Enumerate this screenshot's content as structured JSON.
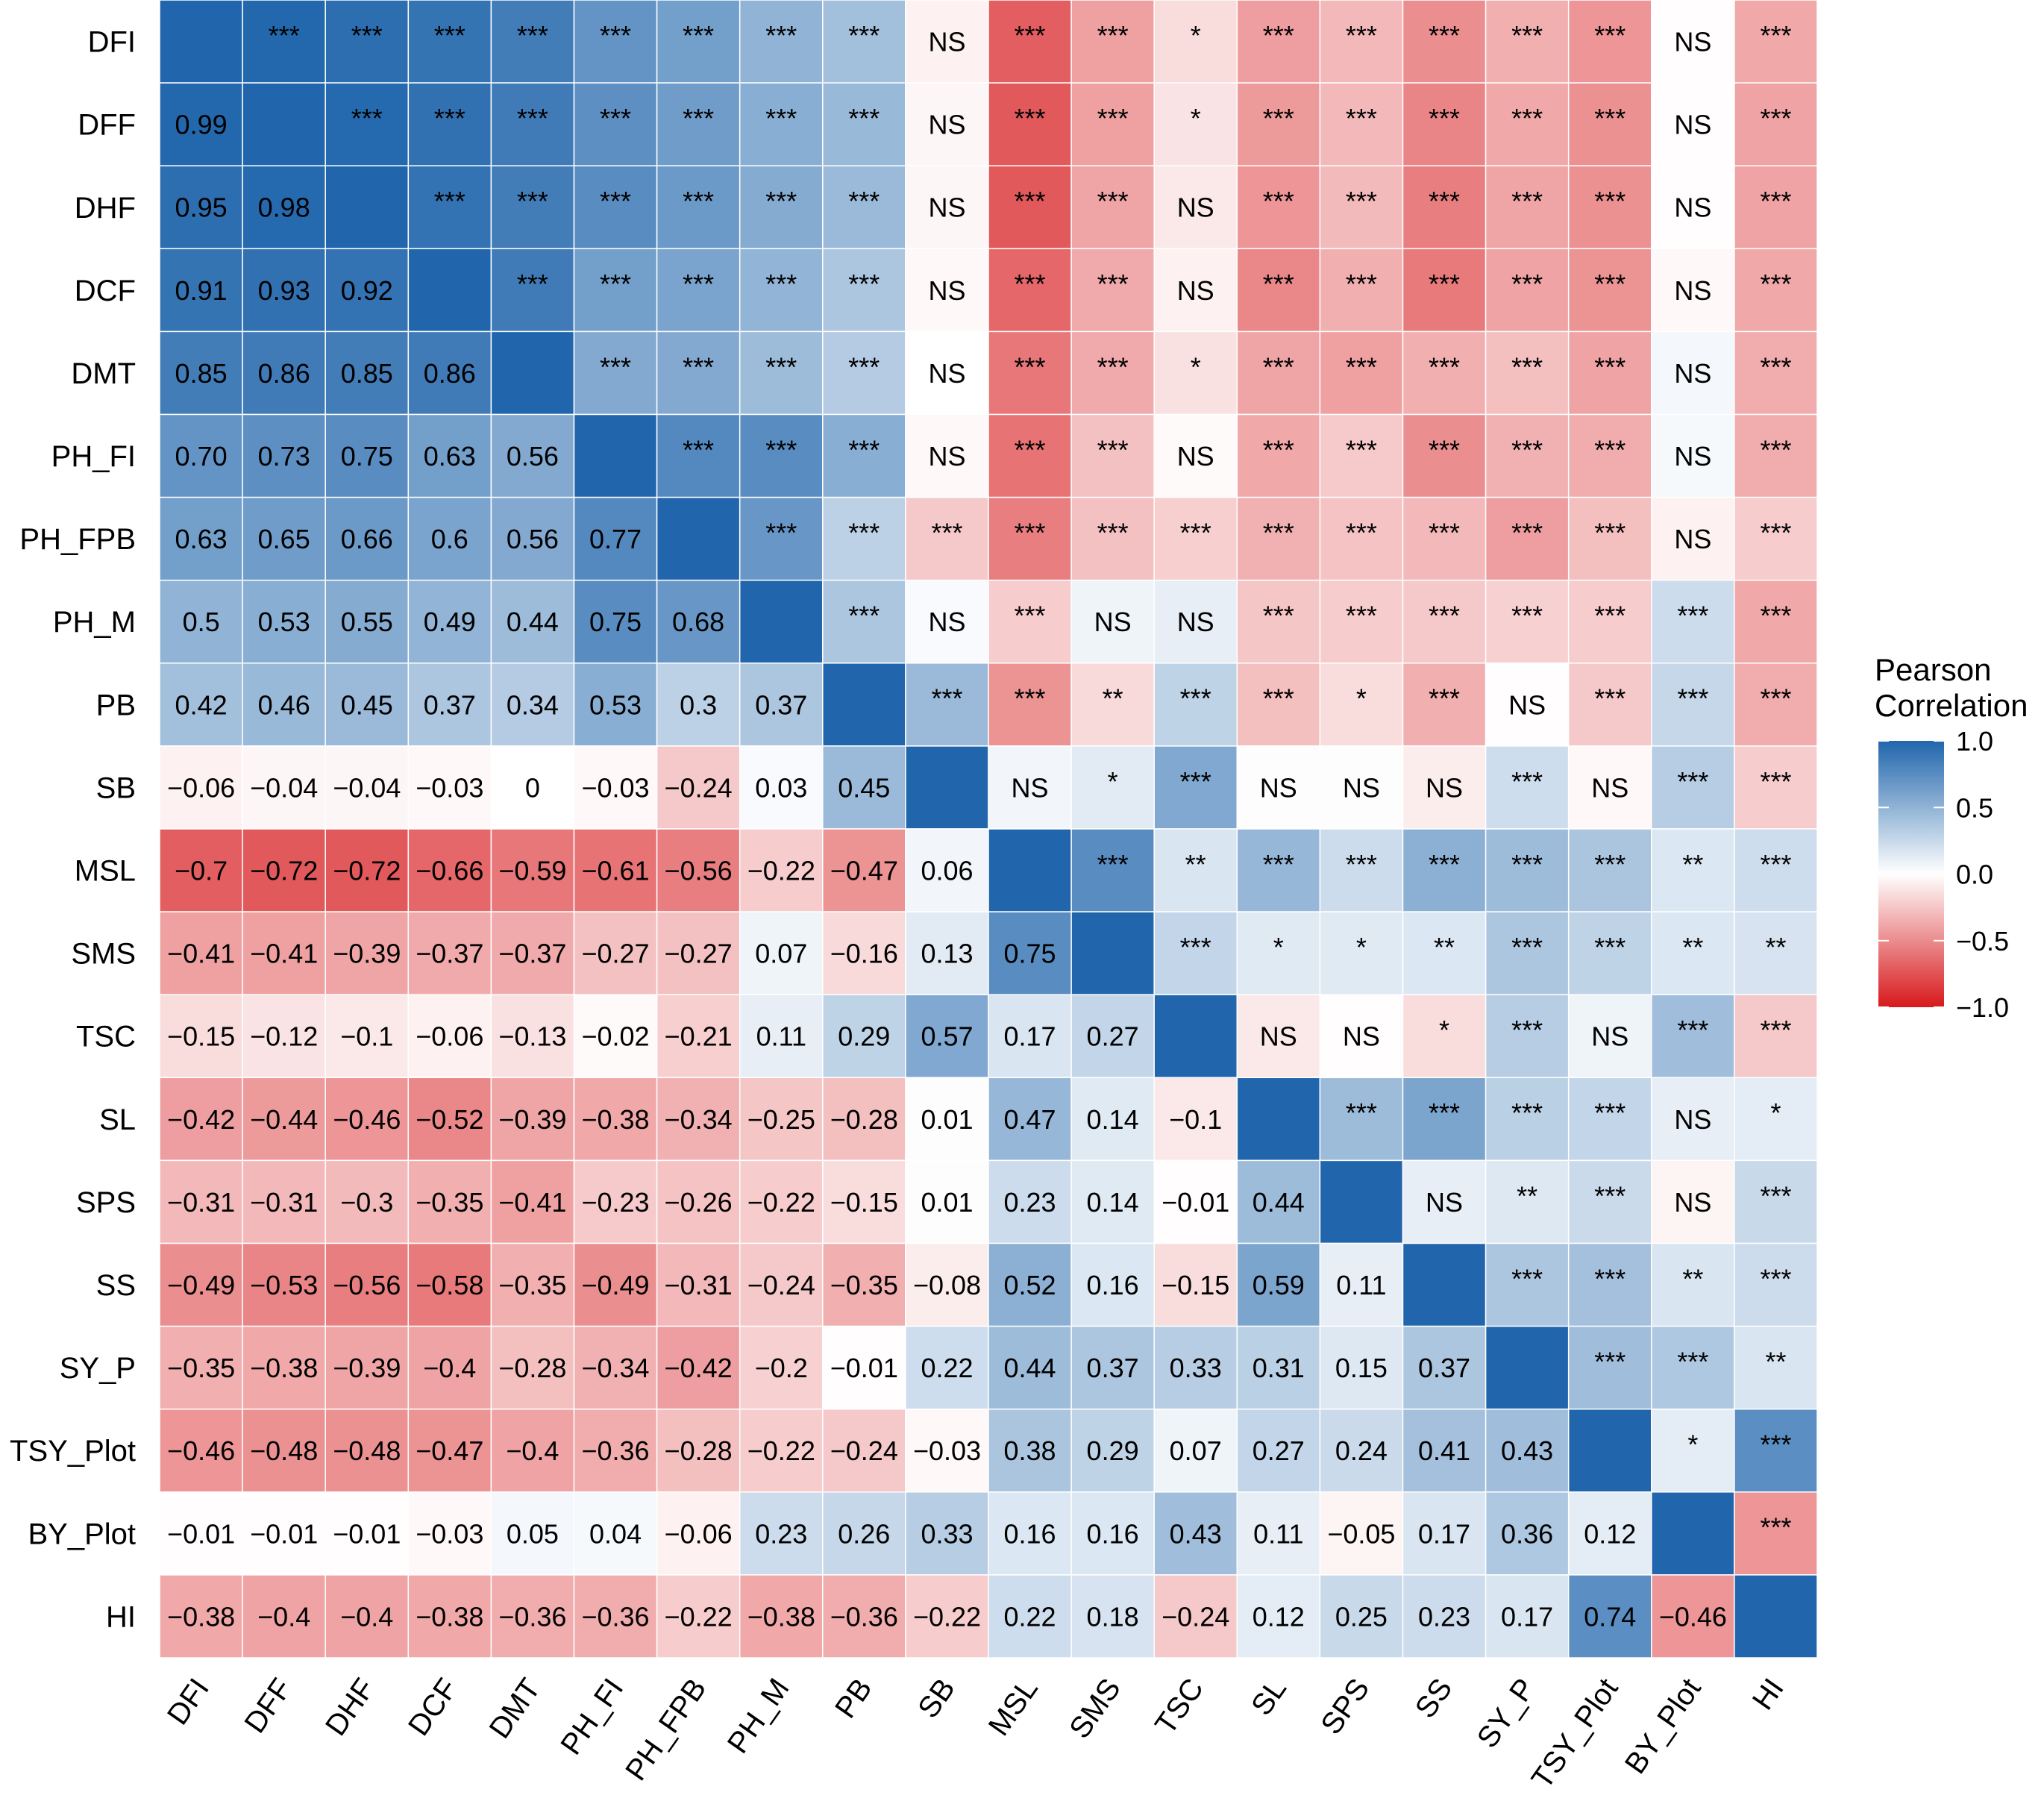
{
  "chart_data": {
    "type": "heatmap",
    "variables": [
      "DFI",
      "DFF",
      "DHF",
      "DCF",
      "DMT",
      "PH_FI",
      "PH_FPB",
      "PH_M",
      "PB",
      "SB",
      "MSL",
      "SMS",
      "TSC",
      "SL",
      "SPS",
      "SS",
      "SY_P",
      "TSY_Plot",
      "BY_Plot",
      "HI"
    ],
    "lower_triangle_label": "Pearson correlation coefficient (printed below diagonal)",
    "upper_triangle_label": "Significance level (printed above diagonal)",
    "correlations": [
      [
        1,
        0.99,
        0.95,
        0.91,
        0.85,
        0.7,
        0.63,
        0.5,
        0.42,
        -0.06,
        -0.7,
        -0.41,
        -0.15,
        -0.42,
        -0.31,
        -0.49,
        -0.35,
        -0.46,
        -0.01,
        -0.38
      ],
      [
        0.99,
        1,
        0.98,
        0.93,
        0.86,
        0.73,
        0.65,
        0.53,
        0.46,
        -0.04,
        -0.72,
        -0.41,
        -0.12,
        -0.44,
        -0.31,
        -0.53,
        -0.38,
        -0.48,
        -0.01,
        -0.4
      ],
      [
        0.95,
        0.98,
        1,
        0.92,
        0.85,
        0.75,
        0.66,
        0.55,
        0.45,
        -0.04,
        -0.72,
        -0.39,
        -0.1,
        -0.46,
        -0.3,
        -0.56,
        -0.39,
        -0.48,
        -0.01,
        -0.4
      ],
      [
        0.91,
        0.93,
        0.92,
        1,
        0.86,
        0.63,
        0.6,
        0.49,
        0.37,
        -0.03,
        -0.66,
        -0.37,
        -0.06,
        -0.52,
        -0.35,
        -0.58,
        -0.4,
        -0.47,
        -0.03,
        -0.38
      ],
      [
        0.85,
        0.86,
        0.85,
        0.86,
        1,
        0.56,
        0.56,
        0.44,
        0.34,
        0,
        -0.59,
        -0.37,
        -0.13,
        -0.39,
        -0.41,
        -0.35,
        -0.28,
        -0.4,
        0.05,
        -0.36
      ],
      [
        0.7,
        0.73,
        0.75,
        0.63,
        0.56,
        1,
        0.77,
        0.75,
        0.53,
        -0.03,
        -0.61,
        -0.27,
        -0.02,
        -0.38,
        -0.23,
        -0.49,
        -0.34,
        -0.36,
        0.04,
        -0.36
      ],
      [
        0.63,
        0.65,
        0.66,
        0.6,
        0.56,
        0.77,
        1,
        0.68,
        0.3,
        -0.24,
        -0.56,
        -0.27,
        -0.21,
        -0.34,
        -0.26,
        -0.31,
        -0.42,
        -0.28,
        -0.06,
        -0.22
      ],
      [
        0.5,
        0.53,
        0.55,
        0.49,
        0.44,
        0.75,
        0.68,
        1,
        0.37,
        0.03,
        -0.22,
        0.07,
        0.11,
        -0.25,
        -0.22,
        -0.24,
        -0.2,
        -0.22,
        0.23,
        -0.38
      ],
      [
        0.42,
        0.46,
        0.45,
        0.37,
        0.34,
        0.53,
        0.3,
        0.37,
        1,
        0.45,
        -0.47,
        -0.16,
        0.29,
        -0.28,
        -0.15,
        -0.35,
        -0.01,
        -0.24,
        0.26,
        -0.36
      ],
      [
        -0.06,
        -0.04,
        -0.04,
        -0.03,
        0,
        -0.03,
        -0.24,
        0.03,
        0.45,
        1,
        0.06,
        0.13,
        0.57,
        0.01,
        0.01,
        -0.08,
        0.22,
        -0.03,
        0.33,
        -0.22
      ],
      [
        -0.7,
        -0.72,
        -0.72,
        -0.66,
        -0.59,
        -0.61,
        -0.56,
        -0.22,
        -0.47,
        0.06,
        1,
        0.75,
        0.17,
        0.47,
        0.23,
        0.52,
        0.44,
        0.38,
        0.16,
        0.22
      ],
      [
        -0.41,
        -0.41,
        -0.39,
        -0.37,
        -0.37,
        -0.27,
        -0.27,
        0.07,
        -0.16,
        0.13,
        0.75,
        1,
        0.27,
        0.14,
        0.14,
        0.16,
        0.37,
        0.29,
        0.16,
        0.18
      ],
      [
        -0.15,
        -0.12,
        -0.1,
        -0.06,
        -0.13,
        -0.02,
        -0.21,
        0.11,
        0.29,
        0.57,
        0.17,
        0.27,
        1,
        -0.1,
        -0.01,
        -0.15,
        0.33,
        0.07,
        0.43,
        -0.24
      ],
      [
        -0.42,
        -0.44,
        -0.46,
        -0.52,
        -0.39,
        -0.38,
        -0.34,
        -0.25,
        -0.28,
        0.01,
        0.47,
        0.14,
        -0.1,
        1,
        0.44,
        0.59,
        0.31,
        0.27,
        0.11,
        0.12
      ],
      [
        -0.31,
        -0.31,
        -0.3,
        -0.35,
        -0.41,
        -0.23,
        -0.26,
        -0.22,
        -0.15,
        0.01,
        0.23,
        0.14,
        -0.01,
        0.44,
        1,
        0.11,
        0.15,
        0.24,
        -0.05,
        0.25
      ],
      [
        -0.49,
        -0.53,
        -0.56,
        -0.58,
        -0.35,
        -0.49,
        -0.31,
        -0.24,
        -0.35,
        -0.08,
        0.52,
        0.16,
        -0.15,
        0.59,
        0.11,
        1,
        0.37,
        0.41,
        0.17,
        0.23
      ],
      [
        -0.35,
        -0.38,
        -0.39,
        -0.4,
        -0.28,
        -0.34,
        -0.42,
        -0.2,
        -0.01,
        0.22,
        0.44,
        0.37,
        0.33,
        0.31,
        0.15,
        0.37,
        1,
        0.43,
        0.36,
        0.17
      ],
      [
        -0.46,
        -0.48,
        -0.48,
        -0.47,
        -0.4,
        -0.36,
        -0.28,
        -0.22,
        -0.24,
        -0.03,
        0.38,
        0.29,
        0.07,
        0.27,
        0.24,
        0.41,
        0.43,
        1,
        0.12,
        0.74
      ],
      [
        -0.01,
        -0.01,
        -0.01,
        -0.03,
        0.05,
        0.04,
        -0.06,
        0.23,
        0.26,
        0.33,
        0.16,
        0.16,
        0.43,
        0.11,
        -0.05,
        0.17,
        0.36,
        0.12,
        1,
        -0.46
      ],
      [
        -0.38,
        -0.4,
        -0.4,
        -0.38,
        -0.36,
        -0.36,
        -0.22,
        -0.38,
        -0.36,
        -0.22,
        0.22,
        0.18,
        -0.24,
        0.12,
        0.25,
        0.23,
        0.17,
        0.74,
        -0.46,
        1
      ]
    ],
    "value_labels": [
      [
        "",
        "",
        "",
        "",
        "",
        "",
        "",
        "",
        "",
        "",
        "",
        "",
        "",
        "",
        "",
        "",
        "",
        "",
        "",
        ""
      ],
      [
        "0.99",
        "",
        "",
        "",
        "",
        "",
        "",
        "",
        "",
        "",
        "",
        "",
        "",
        "",
        "",
        "",
        "",
        "",
        "",
        ""
      ],
      [
        "0.95",
        "0.98",
        "",
        "",
        "",
        "",
        "",
        "",
        "",
        "",
        "",
        "",
        "",
        "",
        "",
        "",
        "",
        "",
        "",
        ""
      ],
      [
        "0.91",
        "0.93",
        "0.92",
        "",
        "",
        "",
        "",
        "",
        "",
        "",
        "",
        "",
        "",
        "",
        "",
        "",
        "",
        "",
        "",
        ""
      ],
      [
        "0.85",
        "0.86",
        "0.85",
        "0.86",
        "",
        "",
        "",
        "",
        "",
        "",
        "",
        "",
        "",
        "",
        "",
        "",
        "",
        "",
        "",
        ""
      ],
      [
        "0.70",
        "0.73",
        "0.75",
        "0.63",
        "0.56",
        "",
        "",
        "",
        "",
        "",
        "",
        "",
        "",
        "",
        "",
        "",
        "",
        "",
        "",
        ""
      ],
      [
        "0.63",
        "0.65",
        "0.66",
        "0.6",
        "0.56",
        "0.77",
        "",
        "",
        "",
        "",
        "",
        "",
        "",
        "",
        "",
        "",
        "",
        "",
        "",
        ""
      ],
      [
        "0.5",
        "0.53",
        "0.55",
        "0.49",
        "0.44",
        "0.75",
        "0.68",
        "",
        "",
        "",
        "",
        "",
        "",
        "",
        "",
        "",
        "",
        "",
        "",
        ""
      ],
      [
        "0.42",
        "0.46",
        "0.45",
        "0.37",
        "0.34",
        "0.53",
        "0.3",
        "0.37",
        "",
        "",
        "",
        "",
        "",
        "",
        "",
        "",
        "",
        "",
        "",
        ""
      ],
      [
        "−0.06",
        "−0.04",
        "−0.04",
        "−0.03",
        "0",
        "−0.03",
        "−0.24",
        "0.03",
        "0.45",
        "",
        "",
        "",
        "",
        "",
        "",
        "",
        "",
        "",
        "",
        ""
      ],
      [
        "−0.7",
        "−0.72",
        "−0.72",
        "−0.66",
        "−0.59",
        "−0.61",
        "−0.56",
        "−0.22",
        "−0.47",
        "0.06",
        "",
        "",
        "",
        "",
        "",
        "",
        "",
        "",
        "",
        ""
      ],
      [
        "−0.41",
        "−0.41",
        "−0.39",
        "−0.37",
        "−0.37",
        "−0.27",
        "−0.27",
        "0.07",
        "−0.16",
        "0.13",
        "0.75",
        "",
        "",
        "",
        "",
        "",
        "",
        "",
        "",
        ""
      ],
      [
        "−0.15",
        "−0.12",
        "−0.1",
        "−0.06",
        "−0.13",
        "−0.02",
        "−0.21",
        "0.11",
        "0.29",
        "0.57",
        "0.17",
        "0.27",
        "",
        "",
        "",
        "",
        "",
        "",
        "",
        ""
      ],
      [
        "−0.42",
        "−0.44",
        "−0.46",
        "−0.52",
        "−0.39",
        "−0.38",
        "−0.34",
        "−0.25",
        "−0.28",
        "0.01",
        "0.47",
        "0.14",
        "−0.1",
        "",
        "",
        "",
        "",
        "",
        "",
        ""
      ],
      [
        "−0.31",
        "−0.31",
        "−0.3",
        "−0.35",
        "−0.41",
        "−0.23",
        "−0.26",
        "−0.22",
        "−0.15",
        "0.01",
        "0.23",
        "0.14",
        "−0.01",
        "0.44",
        "",
        "",
        "",
        "",
        "",
        ""
      ],
      [
        "−0.49",
        "−0.53",
        "−0.56",
        "−0.58",
        "−0.35",
        "−0.49",
        "−0.31",
        "−0.24",
        "−0.35",
        "−0.08",
        "0.52",
        "0.16",
        "−0.15",
        "0.59",
        "0.11",
        "",
        "",
        "",
        "",
        ""
      ],
      [
        "−0.35",
        "−0.38",
        "−0.39",
        "−0.4",
        "−0.28",
        "−0.34",
        "−0.42",
        "−0.2",
        "−0.01",
        "0.22",
        "0.44",
        "0.37",
        "0.33",
        "0.31",
        "0.15",
        "0.37",
        "",
        "",
        "",
        ""
      ],
      [
        "−0.46",
        "−0.48",
        "−0.48",
        "−0.47",
        "−0.4",
        "−0.36",
        "−0.28",
        "−0.22",
        "−0.24",
        "−0.03",
        "0.38",
        "0.29",
        "0.07",
        "0.27",
        "0.24",
        "0.41",
        "0.43",
        "",
        "",
        ""
      ],
      [
        "−0.01",
        "−0.01",
        "−0.01",
        "−0.03",
        "0.05",
        "0.04",
        "−0.06",
        "0.23",
        "0.26",
        "0.33",
        "0.16",
        "0.16",
        "0.43",
        "0.11",
        "−0.05",
        "0.17",
        "0.36",
        "0.12",
        "",
        ""
      ],
      [
        "−0.38",
        "−0.4",
        "−0.4",
        "−0.38",
        "−0.36",
        "−0.36",
        "−0.22",
        "−0.38",
        "−0.36",
        "−0.22",
        "0.22",
        "0.18",
        "−0.24",
        "0.12",
        "0.25",
        "0.23",
        "0.17",
        "0.74",
        "−0.46",
        ""
      ]
    ],
    "significance": [
      [
        "",
        "***",
        "***",
        "***",
        "***",
        "***",
        "***",
        "***",
        "***",
        "NS",
        "***",
        "***",
        "*",
        "***",
        "***",
        "***",
        "***",
        "***",
        "NS",
        "***"
      ],
      [
        "",
        "",
        "***",
        "***",
        "***",
        "***",
        "***",
        "***",
        "***",
        "NS",
        "***",
        "***",
        "*",
        "***",
        "***",
        "***",
        "***",
        "***",
        "NS",
        "***"
      ],
      [
        "",
        "",
        "",
        "***",
        "***",
        "***",
        "***",
        "***",
        "***",
        "NS",
        "***",
        "***",
        "NS",
        "***",
        "***",
        "***",
        "***",
        "***",
        "NS",
        "***"
      ],
      [
        "",
        "",
        "",
        "",
        "***",
        "***",
        "***",
        "***",
        "***",
        "NS",
        "***",
        "***",
        "NS",
        "***",
        "***",
        "***",
        "***",
        "***",
        "NS",
        "***"
      ],
      [
        "",
        "",
        "",
        "",
        "",
        "***",
        "***",
        "***",
        "***",
        "NS",
        "***",
        "***",
        "*",
        "***",
        "***",
        "***",
        "***",
        "***",
        "NS",
        "***"
      ],
      [
        "",
        "",
        "",
        "",
        "",
        "",
        "***",
        "***",
        "***",
        "NS",
        "***",
        "***",
        "NS",
        "***",
        "***",
        "***",
        "***",
        "***",
        "NS",
        "***"
      ],
      [
        "",
        "",
        "",
        "",
        "",
        "",
        "",
        "***",
        "***",
        "***",
        "***",
        "***",
        "***",
        "***",
        "***",
        "***",
        "***",
        "***",
        "NS",
        "***"
      ],
      [
        "",
        "",
        "",
        "",
        "",
        "",
        "",
        "",
        "***",
        "NS",
        "***",
        "NS",
        "NS",
        "***",
        "***",
        "***",
        "***",
        "***",
        "***",
        "***"
      ],
      [
        "",
        "",
        "",
        "",
        "",
        "",
        "",
        "",
        "",
        "***",
        "***",
        "**",
        "***",
        "***",
        "*",
        "***",
        "NS",
        "***",
        "***",
        "***"
      ],
      [
        "",
        "",
        "",
        "",
        "",
        "",
        "",
        "",
        "",
        "",
        "NS",
        "*",
        "***",
        "NS",
        "NS",
        "NS",
        "***",
        "NS",
        "***",
        "***"
      ],
      [
        "",
        "",
        "",
        "",
        "",
        "",
        "",
        "",
        "",
        "",
        "",
        "***",
        "**",
        "***",
        "***",
        "***",
        "***",
        "***",
        "**",
        "***"
      ],
      [
        "",
        "",
        "",
        "",
        "",
        "",
        "",
        "",
        "",
        "",
        "",
        "",
        "***",
        "*",
        "*",
        "**",
        "***",
        "***",
        "**",
        "**"
      ],
      [
        "",
        "",
        "",
        "",
        "",
        "",
        "",
        "",
        "",
        "",
        "",
        "",
        "",
        "NS",
        "NS",
        "*",
        "***",
        "NS",
        "***",
        "***"
      ],
      [
        "",
        "",
        "",
        "",
        "",
        "",
        "",
        "",
        "",
        "",
        "",
        "",
        "",
        "",
        "***",
        "***",
        "***",
        "***",
        "NS",
        "*"
      ],
      [
        "",
        "",
        "",
        "",
        "",
        "",
        "",
        "",
        "",
        "",
        "",
        "",
        "",
        "",
        "",
        "NS",
        "**",
        "***",
        "NS",
        "***"
      ],
      [
        "",
        "",
        "",
        "",
        "",
        "",
        "",
        "",
        "",
        "",
        "",
        "",
        "",
        "",
        "",
        "",
        "***",
        "***",
        "**",
        "***"
      ],
      [
        "",
        "",
        "",
        "",
        "",
        "",
        "",
        "",
        "",
        "",
        "",
        "",
        "",
        "",
        "",
        "",
        "",
        "***",
        "***",
        "**"
      ],
      [
        "",
        "",
        "",
        "",
        "",
        "",
        "",
        "",
        "",
        "",
        "",
        "",
        "",
        "",
        "",
        "",
        "",
        "",
        "*",
        "***"
      ],
      [
        "",
        "",
        "",
        "",
        "",
        "",
        "",
        "",
        "",
        "",
        "",
        "",
        "",
        "",
        "",
        "",
        "",
        "",
        "",
        "***"
      ],
      [
        "",
        "",
        "",
        "",
        "",
        "",
        "",
        "",
        "",
        "",
        "",
        "",
        "",
        "",
        "",
        "",
        "",
        "",
        "",
        ""
      ]
    ],
    "legend": {
      "title_lines": [
        "Pearson",
        "Correlation"
      ],
      "range": [
        -1.0,
        1.0
      ],
      "ticks": [
        1.0,
        0.5,
        0.0,
        -0.5,
        -1.0
      ],
      "tick_labels": [
        "1.0",
        "0.5",
        "0.0",
        "−0.5",
        "−1.0"
      ],
      "placement": "right"
    },
    "colors": {
      "positive": "#2166AC",
      "neutral": "#FFFFFF",
      "negative": "#D7191C",
      "grid": "#FFFFFF",
      "text": "#000000"
    }
  }
}
